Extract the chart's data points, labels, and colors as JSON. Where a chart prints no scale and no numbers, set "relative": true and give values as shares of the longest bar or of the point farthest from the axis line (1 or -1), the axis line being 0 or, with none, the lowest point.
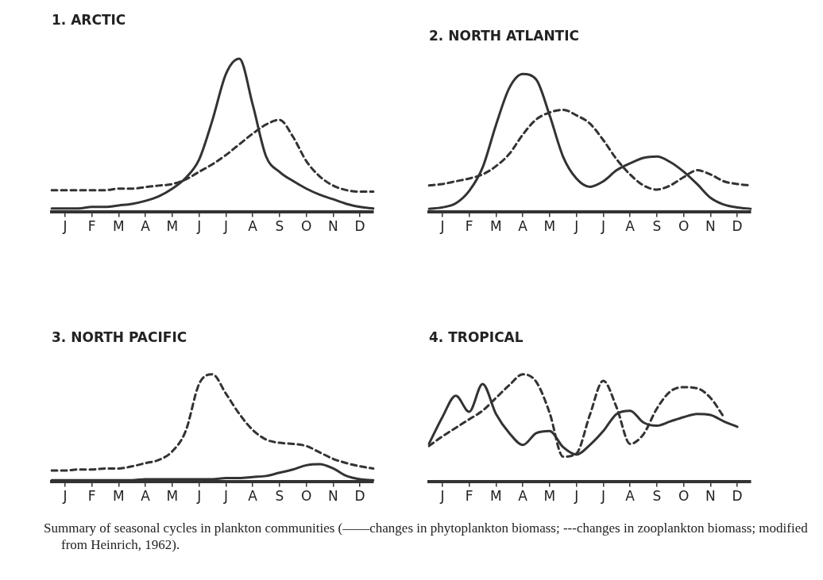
{
  "chart_data": [
    {
      "type": "line",
      "title": "1. ARCTIC",
      "relative": true,
      "grid": false,
      "legend": false,
      "categories": [
        null,
        "J",
        null,
        "F",
        null,
        "M",
        null,
        "A",
        null,
        "M",
        null,
        "J",
        null,
        "J",
        null,
        "A",
        null,
        "S",
        null,
        "O",
        null,
        "N",
        null,
        "D",
        null
      ],
      "series": [
        {
          "color": "#333333",
          "line_style": "solid",
          "values": [
            0.02,
            0.02,
            0.02,
            0.03,
            0.03,
            0.04,
            0.05,
            0.07,
            0.1,
            0.15,
            0.22,
            0.34,
            0.6,
            0.9,
            1.0,
            0.7,
            0.36,
            0.26,
            0.2,
            0.15,
            0.11,
            0.08,
            0.05,
            0.03,
            0.02
          ]
        },
        {
          "color": "#333333",
          "line_style": "dashed",
          "values": [
            0.14,
            0.14,
            0.14,
            0.14,
            0.14,
            0.15,
            0.15,
            0.16,
            0.17,
            0.18,
            0.21,
            0.26,
            0.31,
            0.37,
            0.44,
            0.51,
            0.57,
            0.6,
            0.49,
            0.33,
            0.23,
            0.17,
            0.14,
            0.13,
            0.13
          ]
        }
      ]
    },
    {
      "type": "line",
      "title": "2. NORTH ATLANTIC",
      "relative": true,
      "grid": false,
      "legend": false,
      "categories": [
        null,
        "J",
        null,
        "F",
        null,
        "M",
        null,
        "A",
        null,
        "M",
        null,
        "J",
        null,
        "J",
        null,
        "A",
        null,
        "S",
        null,
        "O",
        null,
        "N",
        null,
        "D",
        null
      ],
      "series": [
        {
          "color": "#333333",
          "line_style": "solid",
          "values": [
            0.02,
            0.03,
            0.06,
            0.15,
            0.32,
            0.63,
            0.9,
            1.0,
            0.96,
            0.7,
            0.4,
            0.24,
            0.18,
            0.22,
            0.3,
            0.35,
            0.39,
            0.4,
            0.36,
            0.29,
            0.2,
            0.1,
            0.05,
            0.03,
            0.02
          ]
        },
        {
          "color": "#333333",
          "line_style": "dashed",
          "values": [
            0.19,
            0.2,
            0.22,
            0.24,
            0.27,
            0.33,
            0.42,
            0.56,
            0.67,
            0.72,
            0.74,
            0.7,
            0.64,
            0.52,
            0.38,
            0.27,
            0.19,
            0.16,
            0.19,
            0.25,
            0.3,
            0.27,
            0.22,
            0.2,
            0.19
          ]
        }
      ]
    },
    {
      "type": "line",
      "title": "3. NORTH PACIFIC",
      "relative": true,
      "grid": false,
      "legend": false,
      "categories": [
        null,
        "J",
        null,
        "F",
        null,
        "M",
        null,
        "A",
        null,
        "M",
        null,
        "J",
        null,
        "J",
        null,
        "A",
        null,
        "S",
        null,
        "O",
        null,
        "N",
        null,
        "D",
        null
      ],
      "series": [
        {
          "color": "#333333",
          "line_style": "solid",
          "values": [
            0.01,
            0.01,
            0.01,
            0.01,
            0.01,
            0.01,
            0.01,
            0.02,
            0.02,
            0.02,
            0.02,
            0.02,
            0.02,
            0.03,
            0.03,
            0.04,
            0.05,
            0.08,
            0.11,
            0.15,
            0.16,
            0.12,
            0.05,
            0.02,
            0.01
          ]
        },
        {
          "color": "#333333",
          "line_style": "dashed",
          "values": [
            0.1,
            0.1,
            0.11,
            0.11,
            0.12,
            0.12,
            0.14,
            0.17,
            0.2,
            0.28,
            0.47,
            0.91,
            1.0,
            0.82,
            0.63,
            0.48,
            0.39,
            0.36,
            0.35,
            0.33,
            0.27,
            0.21,
            0.17,
            0.14,
            0.12
          ]
        }
      ]
    },
    {
      "type": "line",
      "title": "4. TROPICAL",
      "relative": true,
      "grid": false,
      "legend": false,
      "categories": [
        null,
        "J",
        null,
        "F",
        null,
        "M",
        null,
        "A",
        null,
        "M",
        null,
        "J",
        null,
        "J",
        null,
        "A",
        null,
        "S",
        null,
        "O",
        null,
        "N",
        null,
        "D",
        null
      ],
      "annotations": [
        "Summary of seasonal cycles in plankton communities (——changes in phytoplankton biomass; ---changes in zooplankton biomass; modified from Heinrich, 1962)."
      ],
      "series": [
        {
          "color": "#333333",
          "line_style": "solid",
          "values": [
            0.35,
            0.6,
            0.8,
            0.65,
            0.91,
            0.63,
            0.45,
            0.34,
            0.45,
            0.47,
            0.32,
            0.25,
            0.34,
            0.47,
            0.63,
            0.66,
            0.55,
            0.52,
            0.56,
            0.6,
            0.63,
            0.62,
            0.56,
            0.51,
            null
          ]
        },
        {
          "color": "#333333",
          "line_style": "dashed",
          "values": [
            0.33,
            0.42,
            0.5,
            0.58,
            0.66,
            0.78,
            0.9,
            1.0,
            0.93,
            0.64,
            0.23,
            0.26,
            0.62,
            0.94,
            0.69,
            0.35,
            0.44,
            0.68,
            0.84,
            0.88,
            0.87,
            0.78,
            0.6,
            null,
            null
          ]
        }
      ]
    }
  ]
}
